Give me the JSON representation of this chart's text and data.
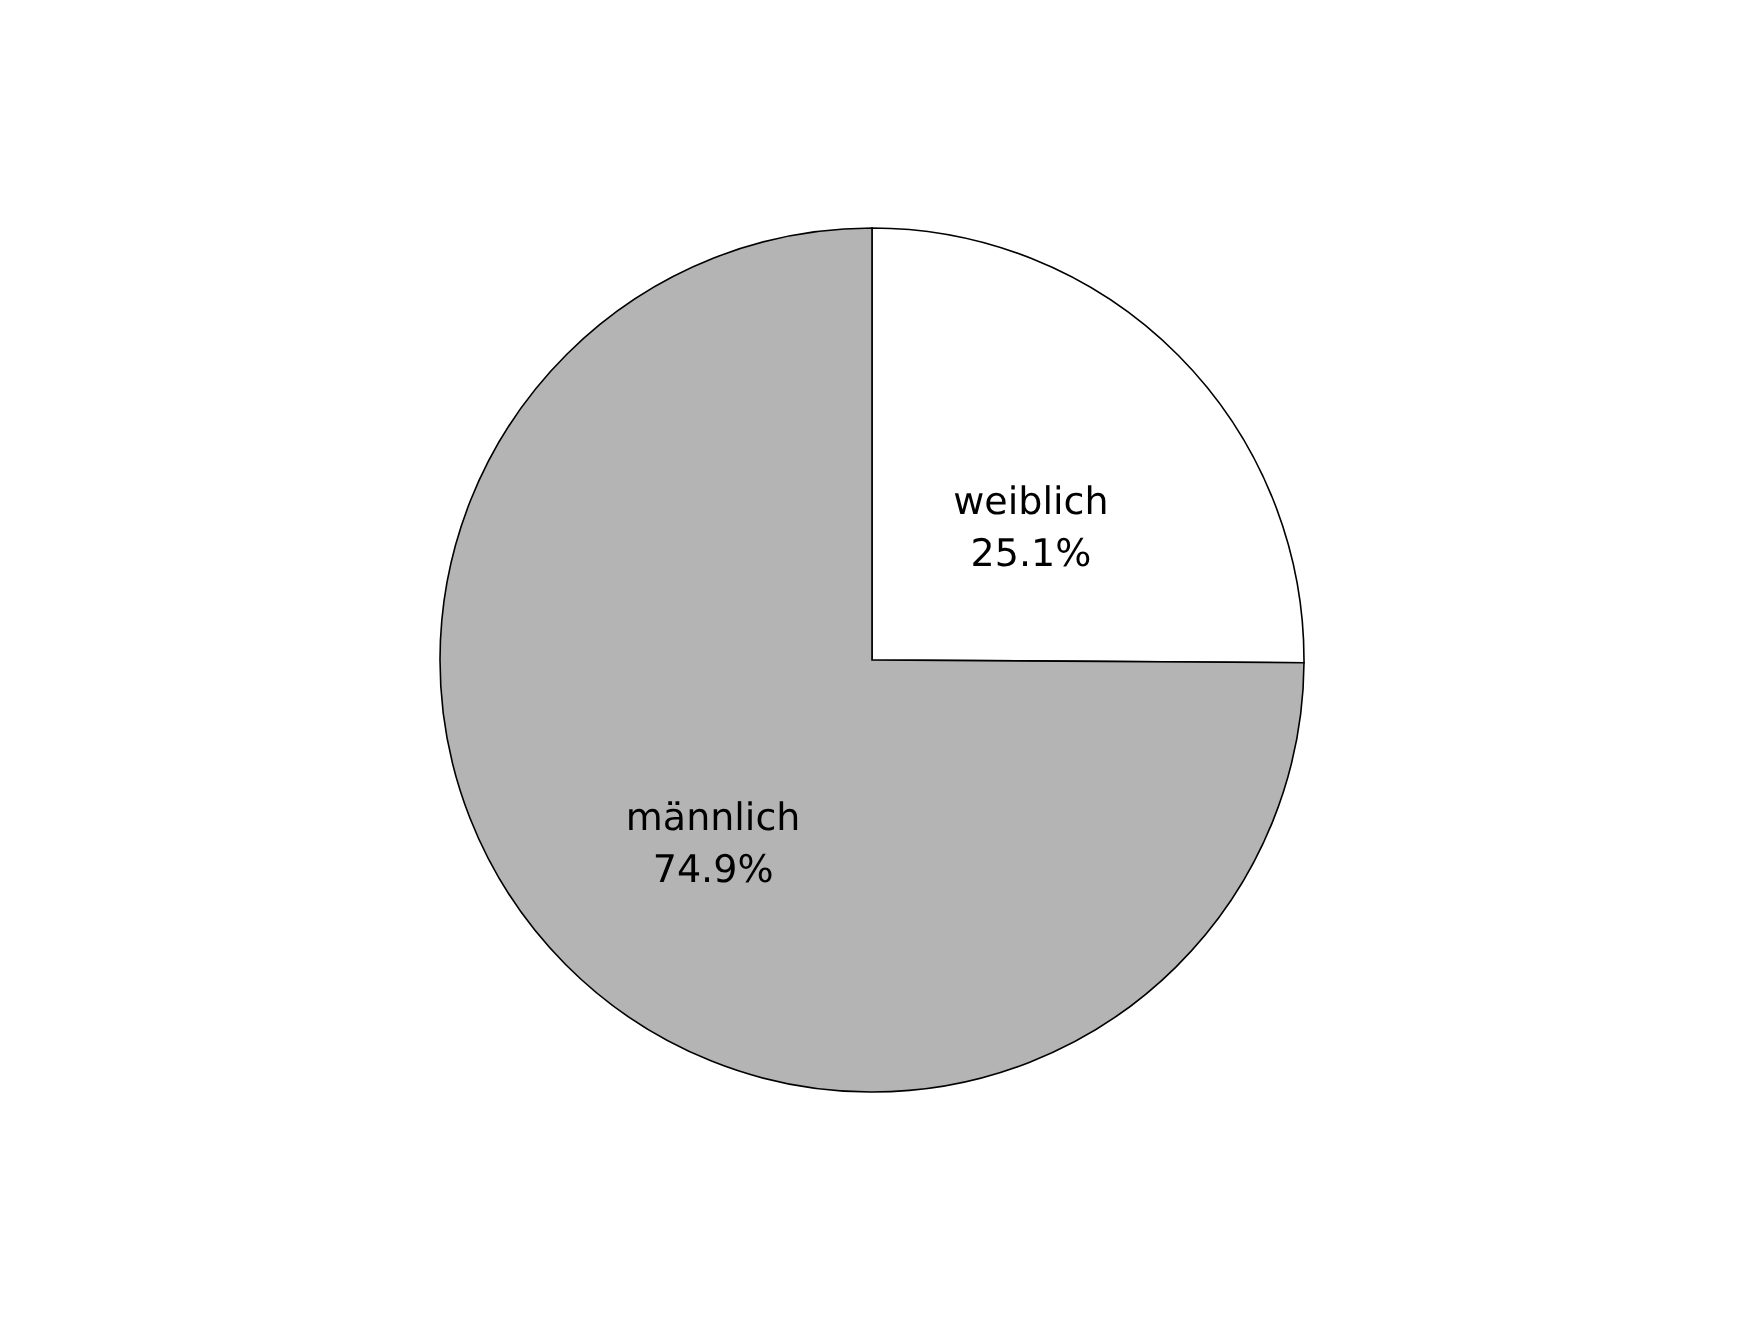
{
  "chart_data": {
    "type": "pie",
    "categories": [
      "weiblich",
      "männlich"
    ],
    "values": [
      25.1,
      74.9
    ],
    "colors": [
      "#ffffff",
      "#b4b4b4"
    ],
    "value_labels": [
      "25.1%",
      "74.9%"
    ],
    "legend": false
  }
}
